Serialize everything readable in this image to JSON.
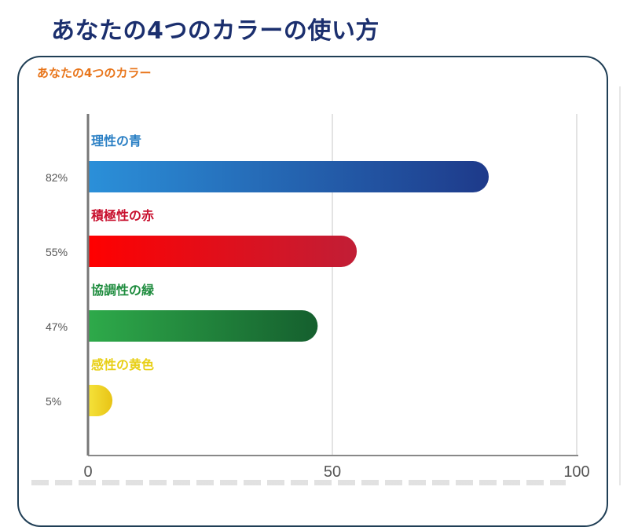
{
  "page": {
    "title": "あなたの4つのカラーの使い方"
  },
  "card": {
    "title": "あなたの4つのカラー"
  },
  "chart_data": {
    "type": "bar",
    "orientation": "horizontal",
    "xlim": [
      0,
      100
    ],
    "xticks": [
      0,
      50,
      100
    ],
    "grid": true,
    "categories": [
      "理性の青",
      "積極性の赤",
      "協調性の緑",
      "感性の黄色"
    ],
    "values": [
      82,
      55,
      47,
      5
    ],
    "value_labels": [
      "82%",
      "55%",
      "47%",
      "5%"
    ],
    "category_colors": [
      "#2a7fc4",
      "#c8102e",
      "#1e8c3e",
      "#e8cf16"
    ],
    "bar_gradients": [
      [
        "#2b90d9",
        "#1e3a8a"
      ],
      [
        "#ff0000",
        "#c11e36"
      ],
      [
        "#2eaa4a",
        "#155f2e"
      ],
      [
        "#f5e23a",
        "#e8c416"
      ]
    ]
  }
}
